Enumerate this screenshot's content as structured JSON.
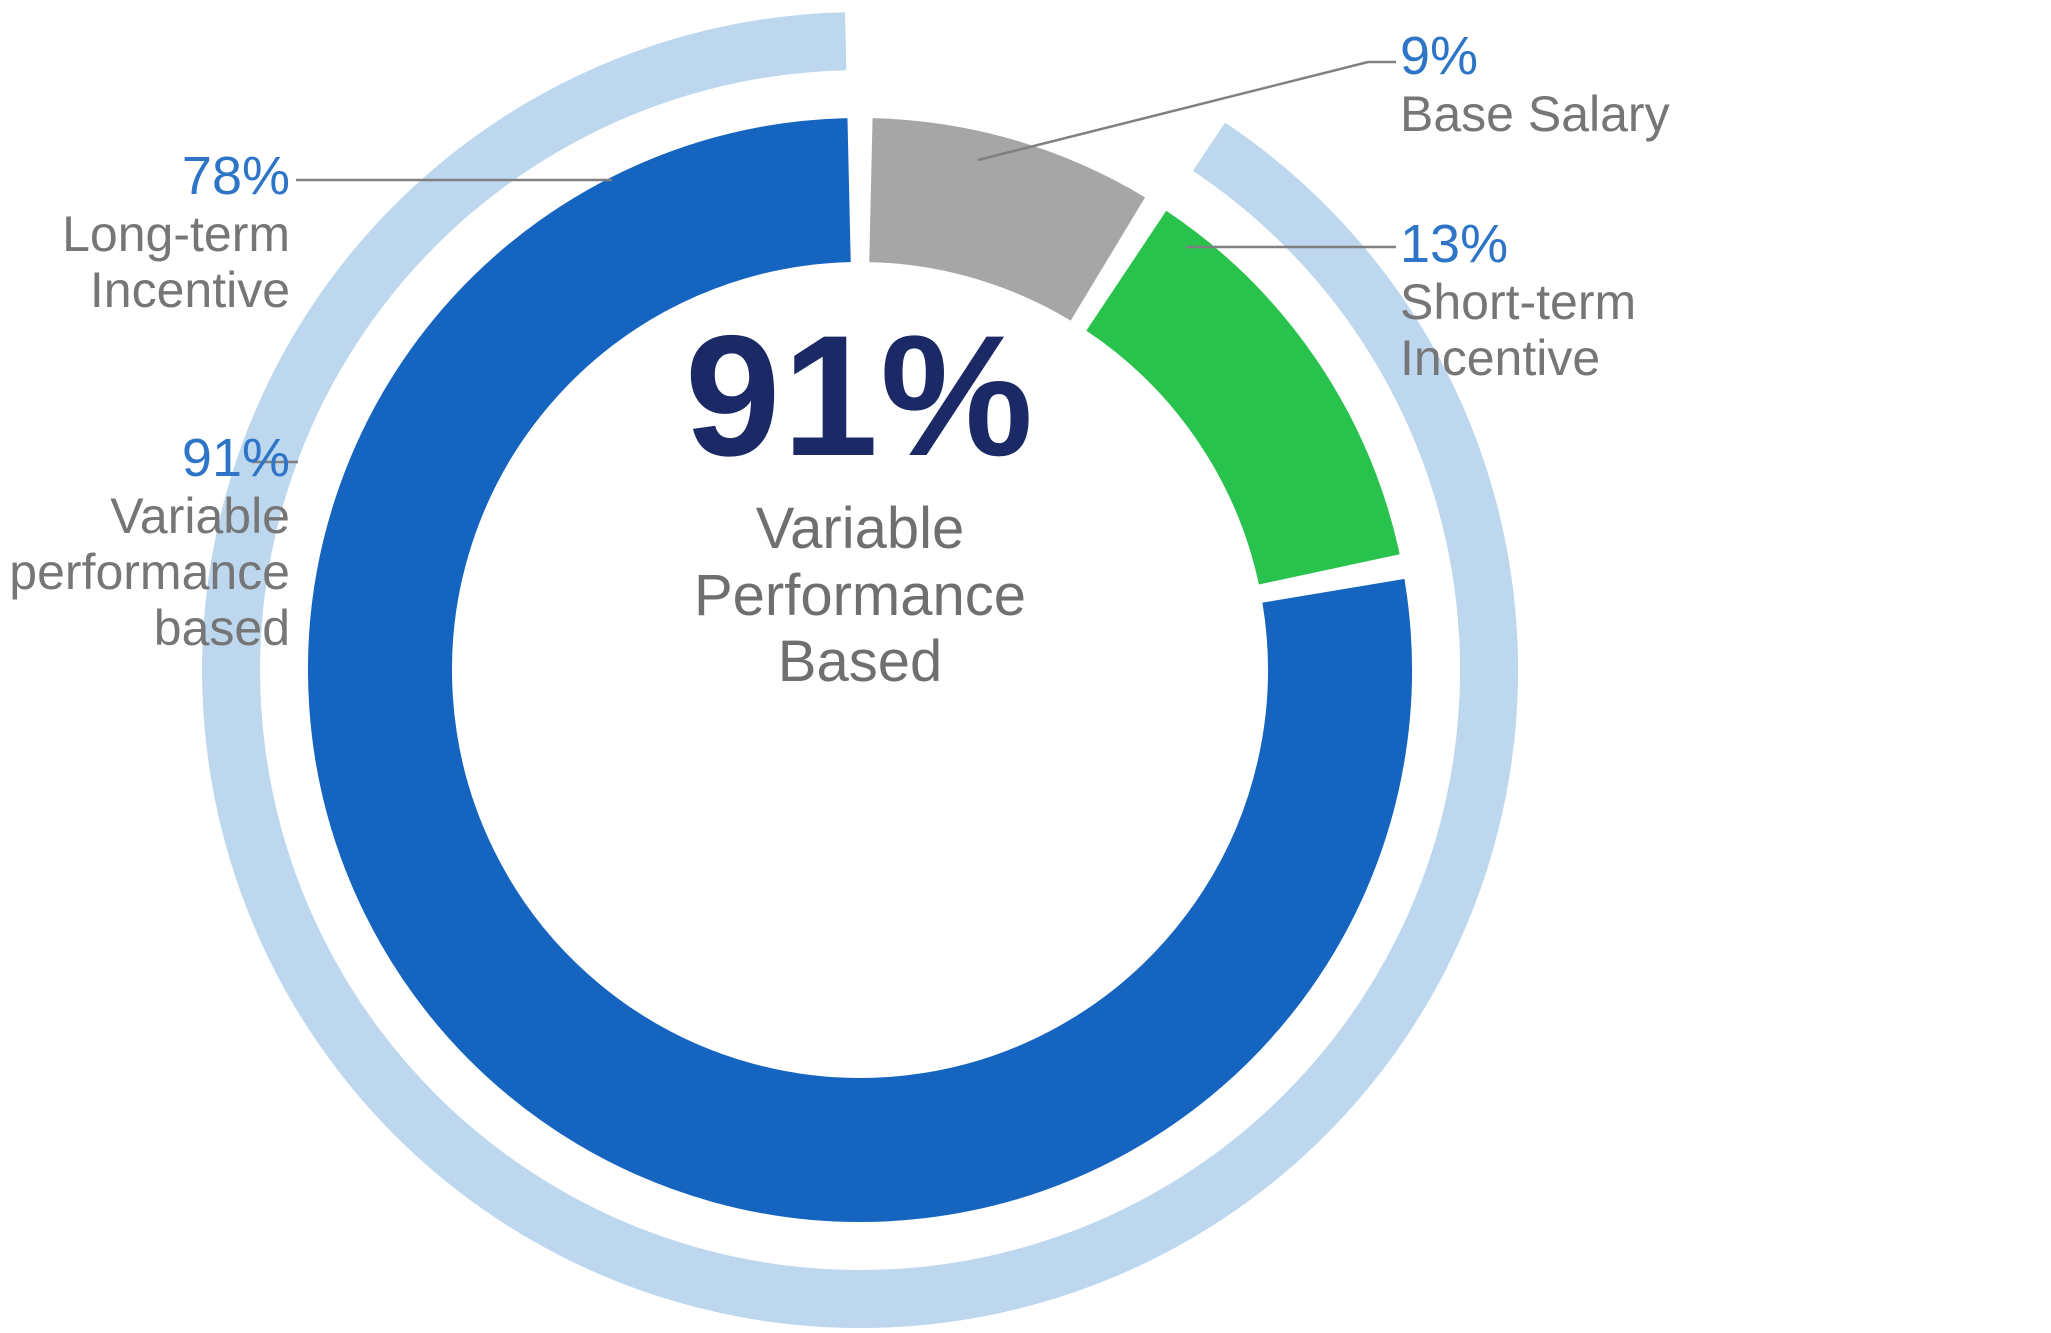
{
  "chart_data": {
    "type": "pie",
    "variant": "donut-with-outer-ring",
    "start_angle_deg": 0,
    "direction": "clockwise",
    "segments": [
      {
        "label": "Base Salary",
        "value": 9,
        "color": "#A6A6A6"
      },
      {
        "label": "Short-term Incentive",
        "value": 13,
        "color": "#28C24C"
      },
      {
        "label": "Long-term Incentive",
        "value": 78,
        "color": "#1565C0"
      }
    ],
    "outer_ring": {
      "label": "Variable performance based",
      "value": 91,
      "color": "#BDD7EE",
      "covers": [
        "Short-term Incentive",
        "Long-term Incentive"
      ]
    },
    "center": {
      "value": "91%",
      "label_lines": [
        "Variable",
        "Performance",
        "Based"
      ]
    }
  },
  "callouts": {
    "base_salary": {
      "pct": "9%",
      "lines": [
        "Base Salary"
      ]
    },
    "short_term": {
      "pct": "13%",
      "lines": [
        "Short-term",
        "Incentive"
      ]
    },
    "long_term": {
      "pct": "78%",
      "lines": [
        "Long-term",
        "Incentive"
      ]
    },
    "variable": {
      "pct": "91%",
      "lines": [
        "Variable",
        "performance",
        "based"
      ]
    }
  },
  "colors": {
    "pct_text": "#2E75C8",
    "label_text": "#767676",
    "center_value_text": "#1B2A66",
    "center_label_text": "#6F6F6F",
    "leader_line": "#808080"
  }
}
